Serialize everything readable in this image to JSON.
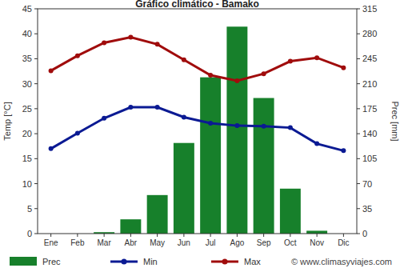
{
  "chart_data": {
    "type": "bar",
    "title": "Gráfico climático - Bamako",
    "y_label": "Temp [°C]",
    "y2_label": "Prec [mm]",
    "annotations": [
      "© www.climasyviajes.com"
    ],
    "categories": [
      "Ene",
      "Feb",
      "Mar",
      "Abr",
      "May",
      "Jun",
      "Jul",
      "Ago",
      "Sep",
      "Oct",
      "Nov",
      "Dic"
    ],
    "series": [
      {
        "name": "Prec",
        "type": "bar",
        "axis": "y2",
        "color": "#17802b",
        "values": [
          0,
          0,
          2,
          20,
          54,
          127,
          219,
          290,
          190,
          63,
          4,
          0
        ]
      },
      {
        "name": "Min",
        "type": "line",
        "color": "#0b1a93",
        "marker": "circle",
        "values": [
          17.0,
          20.1,
          23.1,
          25.3,
          25.3,
          23.3,
          22.1,
          21.6,
          21.5,
          21.2,
          18.0,
          16.6
        ]
      },
      {
        "name": "Max",
        "type": "line",
        "color": "#a00c0c",
        "marker": "circle",
        "values": [
          32.6,
          35.6,
          38.2,
          39.3,
          37.9,
          34.8,
          31.7,
          30.6,
          32.0,
          34.5,
          35.2,
          33.2
        ]
      }
    ],
    "ylim": [
      0,
      45
    ],
    "yticks": [
      0,
      5,
      10,
      15,
      20,
      25,
      30,
      35,
      40,
      45
    ],
    "y2lim": [
      0,
      315
    ],
    "y2ticks": [
      0,
      35,
      70,
      105,
      140,
      175,
      210,
      245,
      280,
      315
    ],
    "grid": false,
    "legend": "bottom"
  }
}
